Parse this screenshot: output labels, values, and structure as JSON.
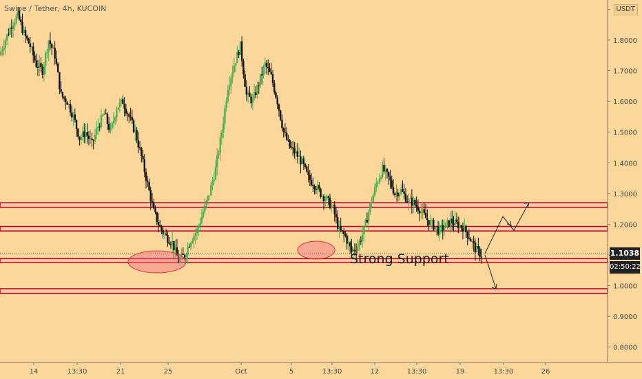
{
  "header": {
    "title": "Swipe / Tether, 4h, KUCOIN"
  },
  "axis": {
    "unit": "USDT",
    "y_ticks": [
      "1.9000",
      "1.8000",
      "1.7000",
      "1.6000",
      "1.5000",
      "1.4000",
      "1.3000",
      "1.2000",
      "1.1000",
      "1.0000",
      "0.9000",
      "0.8000"
    ],
    "x_ticks": [
      "14",
      "13:30",
      "21",
      "25",
      "Oct",
      "5",
      "13:30",
      "12",
      "13:30",
      "19",
      "13:30",
      "26"
    ]
  },
  "badges": {
    "last_price": "1.1038",
    "countdown": "02:50:22"
  },
  "annotations": {
    "strong_support": "Strong Support"
  },
  "chart_data": {
    "type": "candlestick",
    "title": "Swipe / Tether, 4h, KUCOIN",
    "ylim": [
      0.75,
      1.93
    ],
    "last_price": 1.1038,
    "support_resistance_zones": [
      {
        "low": 1.255,
        "high": 1.27
      },
      {
        "low": 1.178,
        "high": 1.193
      },
      {
        "low": 1.075,
        "high": 1.088
      },
      {
        "low": 0.975,
        "high": 0.99
      }
    ],
    "price_path": [
      1.75,
      1.8,
      1.85,
      1.88,
      1.82,
      1.78,
      1.72,
      1.7,
      1.8,
      1.75,
      1.62,
      1.6,
      1.55,
      1.48,
      1.5,
      1.46,
      1.52,
      1.56,
      1.5,
      1.58,
      1.6,
      1.55,
      1.5,
      1.42,
      1.33,
      1.24,
      1.19,
      1.16,
      1.14,
      1.08,
      1.1,
      1.15,
      1.18,
      1.24,
      1.3,
      1.38,
      1.5,
      1.65,
      1.72,
      1.78,
      1.62,
      1.6,
      1.66,
      1.72,
      1.68,
      1.6,
      1.5,
      1.45,
      1.43,
      1.4,
      1.35,
      1.33,
      1.3,
      1.28,
      1.25,
      1.18,
      1.16,
      1.11,
      1.13,
      1.18,
      1.26,
      1.33,
      1.38,
      1.35,
      1.3,
      1.31,
      1.28,
      1.27,
      1.25,
      1.22,
      1.2,
      1.18,
      1.19,
      1.21,
      1.2,
      1.19,
      1.16,
      1.12,
      1.1
    ],
    "projection_paths": [
      [
        [
          1.1,
          1.22
        ],
        [
          1.19,
          1.27
        ]
      ],
      [
        [
          1.1,
          0.99
        ]
      ]
    ]
  }
}
